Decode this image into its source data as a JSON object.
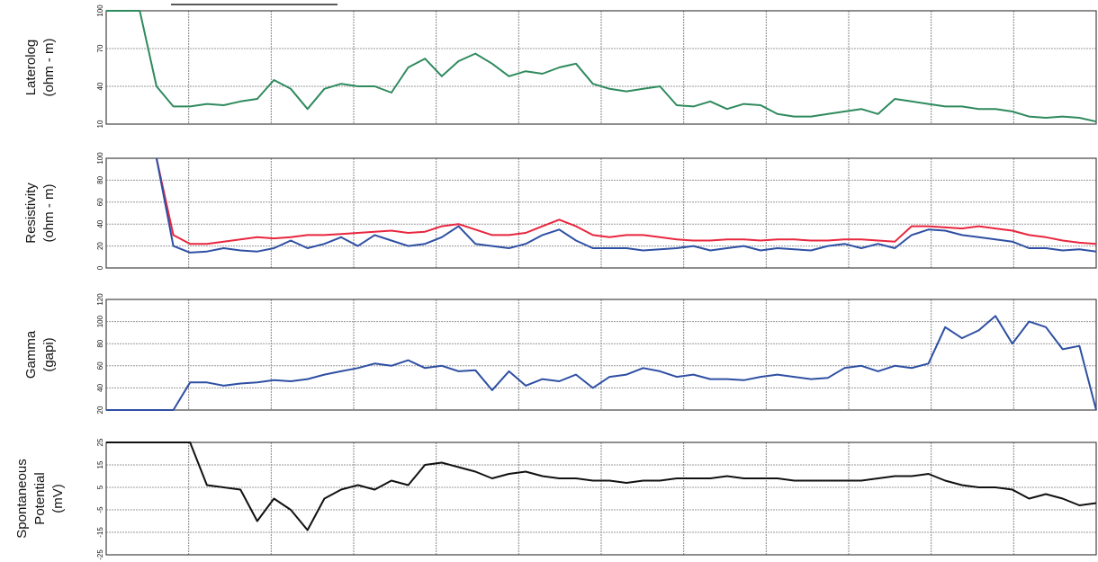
{
  "chart_data": [
    {
      "type": "line",
      "ylabel": [
        "Laterolog",
        "(ohm - m)"
      ],
      "ylim": [
        10,
        100
      ],
      "yticks": [
        10,
        40,
        70,
        100
      ],
      "grid": true,
      "series": [
        {
          "color": "#2f8a5e",
          "values": [
            100,
            100,
            100,
            40,
            24,
            24,
            26,
            25,
            28,
            30,
            45,
            38,
            22,
            38,
            42,
            40,
            40,
            35,
            55,
            62,
            48,
            60,
            66,
            58,
            48,
            52,
            50,
            55,
            58,
            42,
            38,
            36,
            38,
            40,
            25,
            24,
            28,
            22,
            26,
            25,
            18,
            16,
            16,
            18,
            20,
            22,
            18,
            30,
            28,
            26,
            24,
            24,
            22,
            22,
            20,
            16,
            15,
            16,
            15,
            12
          ]
        }
      ]
    },
    {
      "type": "line",
      "ylabel": [
        "Resistivity",
        "(ohm - m)"
      ],
      "ylim": [
        0,
        100
      ],
      "yticks": [
        0,
        20,
        40,
        60,
        80,
        100
      ],
      "grid": true,
      "series": [
        {
          "color": "#e8263e",
          "values": [
            null,
            null,
            null,
            100,
            30,
            22,
            22,
            24,
            26,
            28,
            27,
            28,
            30,
            30,
            31,
            32,
            33,
            34,
            32,
            33,
            38,
            40,
            35,
            30,
            30,
            32,
            38,
            44,
            38,
            30,
            28,
            30,
            30,
            28,
            26,
            25,
            25,
            26,
            26,
            25,
            26,
            26,
            25,
            25,
            26,
            26,
            25,
            24,
            38,
            38,
            37,
            36,
            38,
            36,
            34,
            30,
            28,
            25,
            23,
            22
          ]
        },
        {
          "color": "#2e4fa3",
          "values": [
            null,
            null,
            null,
            100,
            20,
            14,
            15,
            18,
            16,
            15,
            18,
            25,
            18,
            22,
            28,
            20,
            30,
            25,
            20,
            22,
            28,
            38,
            22,
            20,
            18,
            22,
            30,
            35,
            25,
            18,
            18,
            18,
            16,
            17,
            18,
            20,
            16,
            18,
            20,
            16,
            18,
            17,
            16,
            20,
            22,
            18,
            22,
            18,
            30,
            35,
            34,
            30,
            28,
            26,
            24,
            18,
            18,
            16,
            17,
            15
          ]
        }
      ]
    },
    {
      "type": "line",
      "ylabel": [
        "Gamma",
        "(gapi)"
      ],
      "ylim": [
        20,
        120
      ],
      "yticks": [
        20,
        40,
        60,
        80,
        100,
        120
      ],
      "grid": true,
      "series": [
        {
          "color": "#2e4fa3",
          "values": [
            20,
            20,
            20,
            20,
            20,
            45,
            45,
            42,
            44,
            45,
            47,
            46,
            48,
            52,
            55,
            58,
            62,
            60,
            65,
            58,
            60,
            55,
            56,
            38,
            55,
            42,
            48,
            46,
            52,
            40,
            50,
            52,
            58,
            55,
            50,
            52,
            48,
            48,
            47,
            50,
            52,
            50,
            48,
            49,
            58,
            60,
            55,
            60,
            58,
            62,
            95,
            85,
            92,
            105,
            80,
            100,
            95,
            75,
            78,
            20
          ]
        }
      ]
    },
    {
      "type": "line",
      "ylabel": [
        "Spontaneous",
        "Potential",
        "(mV)"
      ],
      "ylim": [
        -25,
        25
      ],
      "yticks": [
        -25,
        -15,
        -5,
        5,
        15,
        25
      ],
      "grid": true,
      "series": [
        {
          "color": "#111111",
          "values": [
            25,
            25,
            25,
            25,
            25,
            25,
            6,
            5,
            4,
            -10,
            0,
            -5,
            -14,
            0,
            4,
            6,
            4,
            8,
            6,
            15,
            16,
            14,
            12,
            9,
            11,
            12,
            10,
            9,
            9,
            8,
            8,
            7,
            8,
            8,
            9,
            9,
            9,
            10,
            9,
            9,
            9,
            8,
            8,
            8,
            8,
            8,
            9,
            10,
            10,
            11,
            8,
            6,
            5,
            5,
            4,
            0,
            2,
            0,
            -3,
            -2
          ]
        }
      ]
    }
  ]
}
